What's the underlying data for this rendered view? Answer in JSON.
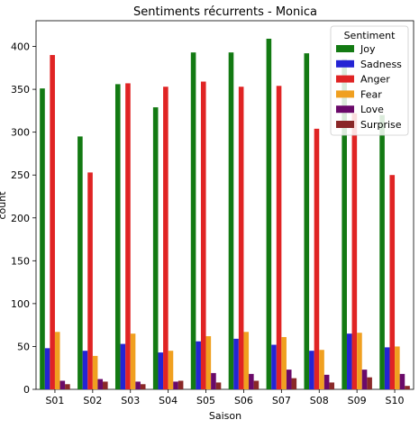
{
  "chart_data": {
    "type": "bar",
    "title": "Sentiments récurrents - Monica",
    "xlabel": "Saison",
    "ylabel": "count",
    "ylim": [
      0,
      430
    ],
    "yticks": [
      0,
      50,
      100,
      150,
      200,
      250,
      300,
      350,
      400
    ],
    "categories": [
      "S01",
      "S02",
      "S03",
      "S04",
      "S05",
      "S06",
      "S07",
      "S08",
      "S09",
      "S10"
    ],
    "legend_title": "Sentiment",
    "legend_position": "top-right",
    "series": [
      {
        "name": "Joy",
        "color": "#137a13",
        "values": [
          351,
          295,
          356,
          329,
          393,
          393,
          409,
          392,
          385,
          320
        ]
      },
      {
        "name": "Sadness",
        "color": "#2424d4",
        "values": [
          48,
          45,
          53,
          43,
          56,
          59,
          52,
          45,
          65,
          49
        ]
      },
      {
        "name": "Anger",
        "color": "#e02424",
        "values": [
          390,
          253,
          357,
          353,
          359,
          353,
          354,
          304,
          322,
          250
        ]
      },
      {
        "name": "Fear",
        "color": "#f0a020",
        "values": [
          67,
          39,
          65,
          45,
          62,
          67,
          61,
          46,
          66,
          50
        ]
      },
      {
        "name": "Love",
        "color": "#6a0a6a",
        "values": [
          10,
          12,
          9,
          9,
          19,
          18,
          23,
          17,
          23,
          18
        ]
      },
      {
        "name": "Surprise",
        "color": "#8a2828",
        "values": [
          6,
          9,
          6,
          10,
          8,
          10,
          13,
          8,
          14,
          4
        ]
      }
    ]
  }
}
